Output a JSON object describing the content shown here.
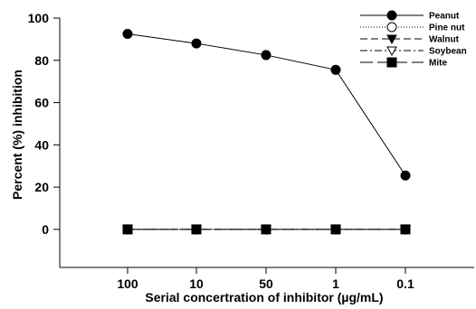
{
  "chart_data": {
    "type": "line",
    "title": "",
    "xlabel": "Serial concertration of inhibitor (µg/mL)",
    "ylabel": "Percent (%) inhibition",
    "categories": [
      "100",
      "10",
      "50",
      "1",
      "0.1"
    ],
    "yticks": [
      0,
      20,
      40,
      60,
      80,
      100
    ],
    "ylim": [
      -18,
      100
    ],
    "grid": false,
    "legend_position": "top-right",
    "series": [
      {
        "name": "Peanut",
        "marker": "filled-circle",
        "line": "solid",
        "color": "#000000",
        "values": [
          92.5,
          88,
          82.5,
          75.5,
          25.5
        ]
      },
      {
        "name": "Pine nut",
        "marker": "open-circle",
        "line": "dotted",
        "color": "#000000",
        "values": [
          0,
          0,
          0,
          0,
          0
        ]
      },
      {
        "name": "Walnut",
        "marker": "filled-triangle-down",
        "line": "dashed",
        "color": "#000000",
        "values": [
          0,
          0,
          0,
          0,
          0
        ]
      },
      {
        "name": "Soybean",
        "marker": "open-triangle-down",
        "line": "dash-dot",
        "color": "#000000",
        "values": [
          0,
          0,
          0,
          0,
          0
        ]
      },
      {
        "name": "Mite",
        "marker": "filled-square",
        "line": "long-dash",
        "color": "#000000",
        "values": [
          0,
          0,
          0,
          0,
          0
        ]
      }
    ]
  }
}
